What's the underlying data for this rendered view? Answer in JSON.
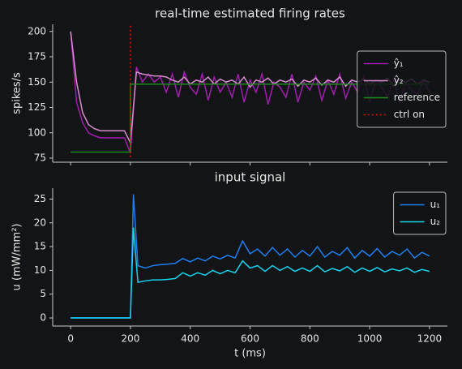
{
  "chart_data": [
    {
      "type": "line",
      "title": "real-time estimated firing rates",
      "ylabel": "spikes/s",
      "xlim": [
        -60,
        1260
      ],
      "ylim": [
        71,
        207
      ],
      "yticks": [
        75,
        100,
        125,
        150,
        175,
        200
      ],
      "grid": false,
      "legend": "upper right",
      "x": [
        0,
        20,
        40,
        60,
        80,
        100,
        120,
        140,
        160,
        180,
        200,
        220,
        240,
        260,
        280,
        300,
        320,
        340,
        360,
        380,
        400,
        420,
        440,
        460,
        480,
        500,
        520,
        540,
        560,
        580,
        600,
        620,
        640,
        660,
        680,
        700,
        720,
        740,
        760,
        780,
        800,
        820,
        840,
        860,
        880,
        900,
        920,
        940,
        960,
        980,
        1000,
        1020,
        1040,
        1060,
        1080,
        1100,
        1120,
        1140,
        1160,
        1180,
        1200
      ],
      "series": [
        {
          "name": "ŷ₁",
          "color": "#a21caf",
          "values": [
            200,
            130,
            110,
            100,
            97,
            95,
            95,
            95,
            95,
            95,
            80,
            165,
            150,
            158,
            150,
            155,
            140,
            158,
            135,
            160,
            145,
            138,
            158,
            132,
            155,
            140,
            150,
            135,
            158,
            130,
            152,
            140,
            158,
            128,
            150,
            145,
            135,
            158,
            130,
            150,
            142,
            156,
            132,
            152,
            138,
            158,
            134,
            150,
            140,
            156,
            130,
            152,
            145,
            135,
            155,
            130,
            150,
            142,
            138,
            152,
            140
          ]
        },
        {
          "name": "ŷ₂",
          "color": "#d98bcf",
          "values": [
            200,
            150,
            120,
            108,
            104,
            102,
            102,
            102,
            102,
            102,
            90,
            160,
            158,
            157,
            156,
            156,
            155,
            152,
            150,
            155,
            148,
            152,
            150,
            155,
            148,
            153,
            150,
            152,
            148,
            155,
            145,
            152,
            150,
            154,
            148,
            152,
            150,
            153,
            146,
            152,
            150,
            154,
            147,
            152,
            150,
            155,
            146,
            152,
            150,
            153,
            148,
            152,
            150,
            154,
            146,
            152,
            150,
            153,
            148,
            152,
            150
          ]
        },
        {
          "name": "reference",
          "color": "#1a8a1a",
          "x": [
            0,
            200,
            200,
            1200
          ],
          "values": [
            81,
            81,
            148,
            148
          ]
        },
        {
          "name": "ctrl on",
          "color": "#e01010",
          "dash": "dotted",
          "x": [
            200,
            200
          ],
          "values": [
            76,
            207
          ]
        }
      ]
    },
    {
      "type": "line",
      "title": "input signal",
      "xlabel": "t (ms)",
      "ylabel": "u (mW/mm²)",
      "xlim": [
        -60,
        1260
      ],
      "ylim": [
        -1.7,
        27.3
      ],
      "xticks": [
        0,
        200,
        400,
        600,
        800,
        1000,
        1200
      ],
      "yticks": [
        0,
        5,
        10,
        15,
        20,
        25
      ],
      "grid": false,
      "legend": "upper right",
      "x": [
        0,
        200,
        210,
        225,
        250,
        275,
        300,
        325,
        350,
        375,
        400,
        425,
        450,
        475,
        500,
        525,
        550,
        575,
        600,
        625,
        650,
        675,
        700,
        725,
        750,
        775,
        800,
        825,
        850,
        875,
        900,
        925,
        950,
        975,
        1000,
        1025,
        1050,
        1075,
        1100,
        1125,
        1150,
        1175,
        1200
      ],
      "series": [
        {
          "name": "u₁",
          "color": "#1e7ff0",
          "values": [
            0,
            0,
            26,
            11,
            10.5,
            11,
            11.2,
            11.3,
            11.5,
            12.5,
            11.8,
            12.6,
            12,
            13,
            12.4,
            13.2,
            12.6,
            16.2,
            13.5,
            14.5,
            13,
            14.8,
            13.2,
            14.5,
            12.8,
            14.2,
            13,
            15,
            12.8,
            14,
            13.2,
            14.8,
            12.6,
            14.2,
            13,
            14.6,
            12.8,
            14,
            13.2,
            14.5,
            12.6,
            13.8,
            13
          ]
        },
        {
          "name": "u₂",
          "color": "#17d4f0",
          "values": [
            0,
            0,
            19,
            7.5,
            7.8,
            8,
            8,
            8.1,
            8.3,
            9.5,
            8.8,
            9.5,
            9,
            10,
            9.3,
            10,
            9.5,
            12,
            10.5,
            11,
            9.8,
            11,
            10,
            10.8,
            9.8,
            10.5,
            9.8,
            11,
            9.7,
            10.4,
            9.9,
            10.8,
            9.6,
            10.5,
            9.8,
            10.6,
            9.7,
            10.3,
            9.9,
            10.5,
            9.6,
            10.2,
            9.8
          ]
        }
      ]
    }
  ]
}
